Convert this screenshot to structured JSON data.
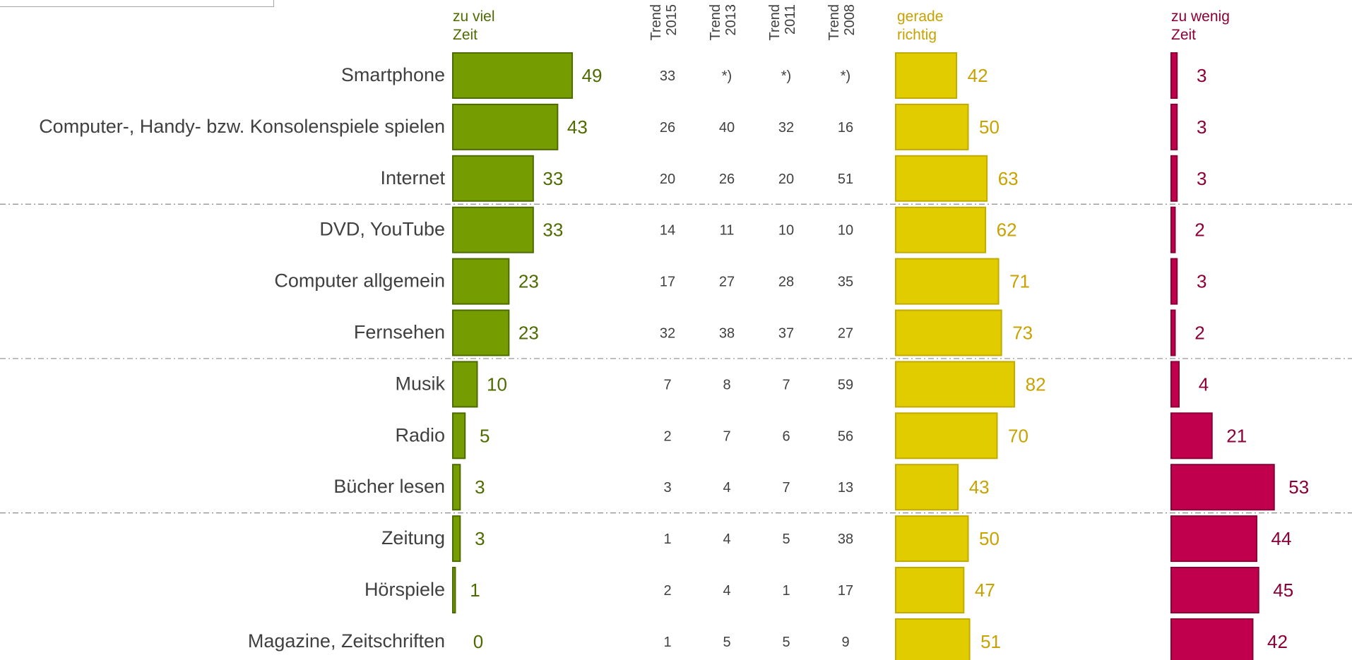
{
  "chart_data": {
    "type": "bar",
    "categories": [
      "Smartphone",
      "Computer-, Handy- bzw. Konsolenspiele spielen",
      "Internet",
      "DVD, YouTube",
      "Computer allgemein",
      "Fernsehen",
      "Musik",
      "Radio",
      "Bücher lesen",
      "Zeitung",
      "Hörspiele",
      "Magazine, Zeitschriften"
    ],
    "series": [
      {
        "name": "zu viel Zeit",
        "values": [
          49,
          43,
          33,
          33,
          23,
          23,
          10,
          5,
          3,
          3,
          1,
          0
        ]
      },
      {
        "name": "gerade richtig",
        "values": [
          42,
          50,
          63,
          62,
          71,
          73,
          82,
          70,
          43,
          50,
          47,
          51
        ]
      },
      {
        "name": "zu wenig Zeit",
        "values": [
          3,
          3,
          3,
          2,
          3,
          2,
          4,
          21,
          53,
          44,
          45,
          42
        ]
      }
    ],
    "series_headers": [
      [
        "zu viel",
        "Zeit"
      ],
      [
        "gerade",
        "richtig"
      ],
      [
        "zu wenig",
        "Zeit"
      ]
    ],
    "trend": {
      "headers": [
        [
          "Trend",
          "2015"
        ],
        [
          "Trend",
          "2013"
        ],
        [
          "Trend",
          "2011"
        ],
        [
          "Trend",
          "2008"
        ]
      ],
      "rows": [
        [
          "33",
          "*)",
          "*)",
          "*)"
        ],
        [
          "26",
          "40",
          "32",
          "16"
        ],
        [
          "20",
          "26",
          "20",
          "51"
        ],
        [
          "14",
          "11",
          "10",
          "10"
        ],
        [
          "17",
          "27",
          "28",
          "35"
        ],
        [
          "32",
          "38",
          "37",
          "27"
        ],
        [
          "7",
          "8",
          "7",
          "59"
        ],
        [
          "2",
          "7",
          "6",
          "56"
        ],
        [
          "3",
          "4",
          "7",
          "13"
        ],
        [
          "1",
          "4",
          "5",
          "38"
        ],
        [
          "2",
          "4",
          "1",
          "17"
        ],
        [
          "1",
          "5",
          "5",
          "9"
        ]
      ]
    },
    "group_separators_after": [
      2,
      5,
      8
    ],
    "grid": false,
    "legend": "column headers above bars"
  },
  "colors": {
    "too_much_fill": "#759c00",
    "too_much_stroke": "#4e6b00",
    "too_much_text": "#4e6b00",
    "just_right_fill": "#e1cc00",
    "just_right_stroke": "#c2ab00",
    "just_right_text": "#c8a200",
    "too_little_fill": "#c0004d",
    "too_little_stroke": "#8c0038",
    "too_little_text": "#8c0038",
    "category_text": "#404040",
    "trend_text": "#404040",
    "separator": "#8c8c8c"
  }
}
